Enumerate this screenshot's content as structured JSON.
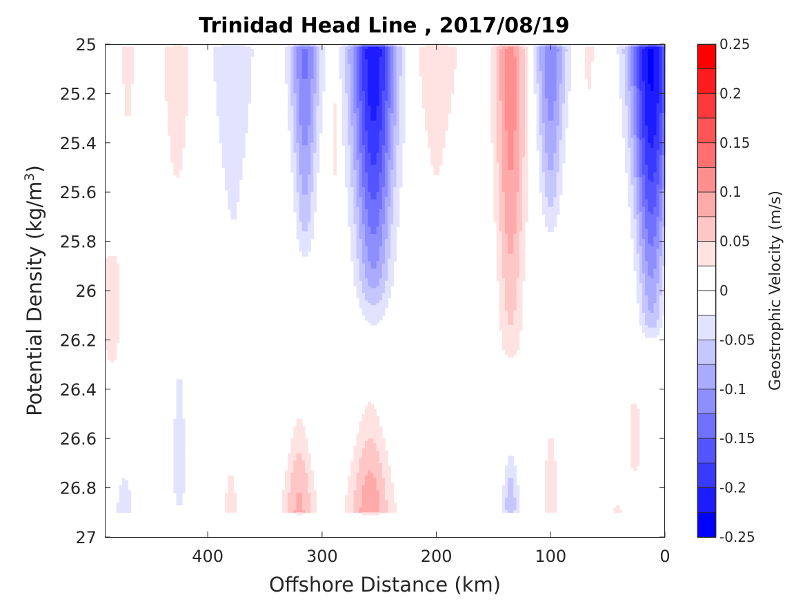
{
  "chart_data": {
    "type": "heatmap",
    "title": "Trinidad Head Line , 2017/08/19",
    "xlabel": "Offshore Distance (km)",
    "ylabel_prefix": "Potential Density (kg/m",
    "ylabel_sup": "3",
    "ylabel_suffix": ")",
    "xlim": [
      490,
      0
    ],
    "ylim": [
      25,
      27
    ],
    "x_reversed": true,
    "y_reversed": true,
    "xticks": [
      400,
      300,
      200,
      100,
      0
    ],
    "xtick_labels": [
      "400",
      "300",
      "200",
      "100",
      "0"
    ],
    "yticks": [
      25,
      25.2,
      25.4,
      25.6,
      25.8,
      26,
      26.2,
      26.4,
      26.6,
      26.8,
      27
    ],
    "ytick_labels": [
      "25",
      "25.2",
      "25.4",
      "25.6",
      "25.8",
      "26",
      "26.2",
      "26.4",
      "26.6",
      "26.8",
      "27"
    ],
    "colorbar": {
      "label": "Geostrophic Velocity (m/s)",
      "range": [
        -0.25,
        0.25
      ],
      "step": 0.025,
      "tick_values": [
        0.25,
        0.2,
        0.15,
        0.1,
        0.05,
        0,
        -0.05,
        -0.1,
        -0.15,
        -0.2,
        -0.25
      ],
      "tick_labels": [
        "0.25",
        "0.2",
        "0.15",
        "0.1",
        "0.05",
        "0",
        "-0.05",
        "-0.1",
        "-0.15",
        "-0.2",
        "-0.25"
      ],
      "levels": [
        {
          "from": 0.225,
          "to": 0.25,
          "color": "#ff0000"
        },
        {
          "from": 0.2,
          "to": 0.225,
          "color": "#ff1c1c"
        },
        {
          "from": 0.175,
          "to": 0.2,
          "color": "#ff3939"
        },
        {
          "from": 0.15,
          "to": 0.175,
          "color": "#ff5555"
        },
        {
          "from": 0.125,
          "to": 0.15,
          "color": "#ff7171"
        },
        {
          "from": 0.1,
          "to": 0.125,
          "color": "#ff8e8e"
        },
        {
          "from": 0.075,
          "to": 0.1,
          "color": "#ffaaaa"
        },
        {
          "from": 0.05,
          "to": 0.075,
          "color": "#ffc6c6"
        },
        {
          "from": 0.025,
          "to": 0.05,
          "color": "#ffe3e3"
        },
        {
          "from": 0,
          "to": 0.025,
          "color": "#ffffff"
        },
        {
          "from": -0.025,
          "to": 0,
          "color": "#ffffff"
        },
        {
          "from": -0.05,
          "to": -0.025,
          "color": "#e3e3ff"
        },
        {
          "from": -0.075,
          "to": -0.05,
          "color": "#c6c6ff"
        },
        {
          "from": -0.1,
          "to": -0.075,
          "color": "#aaaaff"
        },
        {
          "from": -0.125,
          "to": -0.1,
          "color": "#8e8eff"
        },
        {
          "from": -0.15,
          "to": -0.125,
          "color": "#7171ff"
        },
        {
          "from": -0.175,
          "to": -0.15,
          "color": "#5555ff"
        },
        {
          "from": -0.2,
          "to": -0.175,
          "color": "#3939ff"
        },
        {
          "from": -0.225,
          "to": -0.2,
          "color": "#1c1cff"
        },
        {
          "from": -0.25,
          "to": -0.225,
          "color": "#0000ff"
        }
      ]
    },
    "features": [
      {
        "sign": -1,
        "peak": 0.22,
        "peak_x": 255,
        "peak_y": 25.0,
        "hw_top": 21,
        "hw_bot": 13,
        "y_start": 25.0,
        "y_end": 26.3,
        "y_core": 25.9
      },
      {
        "sign": -1,
        "peak": 0.23,
        "peak_x": 12,
        "peak_y": 25.05,
        "hw_top": 20,
        "hw_bot": 9,
        "y_start": 25.0,
        "y_end": 26.25,
        "y_core": 26.1
      },
      {
        "sign": -1,
        "peak": 0.12,
        "peak_x": 100,
        "peak_y": 25.0,
        "hw_top": 15,
        "hw_bot": 6,
        "y_start": 25.0,
        "y_end": 25.95,
        "y_core": 25.6
      },
      {
        "sign": -1,
        "peak": 0.13,
        "peak_x": 315,
        "peak_y": 25.0,
        "hw_top": 14,
        "hw_bot": 6,
        "y_start": 25.0,
        "y_end": 26.05,
        "y_core": 25.7
      },
      {
        "sign": -1,
        "peak": 0.05,
        "peak_x": 378,
        "peak_y": 25.2,
        "hw_top": 22,
        "hw_bot": 6,
        "y_start": 25.0,
        "y_end": 25.8,
        "y_core": 25.7
      },
      {
        "sign": -1,
        "peak": 0.05,
        "peak_x": 425,
        "peak_y": 26.6,
        "hw_top": 4,
        "hw_bot": 6,
        "y_start": 26.35,
        "y_end": 26.9,
        "y_core": 26.85
      },
      {
        "sign": -1,
        "peak": 0.05,
        "peak_x": 473,
        "peak_y": 26.85,
        "hw_top": 4,
        "hw_bot": 8,
        "y_start": 26.75,
        "y_end": 26.9,
        "y_core": 26.9
      },
      {
        "sign": -1,
        "peak": 0.065,
        "peak_x": 135,
        "peak_y": 26.85,
        "hw_top": 5,
        "hw_bot": 8,
        "y_start": 26.65,
        "y_end": 26.9,
        "y_core": 26.9
      },
      {
        "sign": 1,
        "peak": 0.11,
        "peak_x": 135,
        "peak_y": 25.2,
        "hw_top": 15,
        "hw_bot": 10,
        "y_start": 25.0,
        "y_end": 26.35,
        "y_core": 26.2
      },
      {
        "sign": 1,
        "peak": 0.045,
        "peak_x": 200,
        "peak_y": 25.05,
        "hw_top": 24,
        "hw_bot": 3,
        "y_start": 25.0,
        "y_end": 25.8,
        "y_core": 25.6
      },
      {
        "sign": 1,
        "peak": 0.045,
        "peak_x": 427,
        "peak_y": 25.2,
        "hw_top": 16,
        "hw_bot": 5,
        "y_start": 25.0,
        "y_end": 25.65,
        "y_core": 25.5
      },
      {
        "sign": 1,
        "peak": 0.04,
        "peak_x": 470,
        "peak_y": 25.1,
        "hw_top": 8,
        "hw_bot": 2,
        "y_start": 25.0,
        "y_end": 25.4,
        "y_core": 25.35
      },
      {
        "sign": 1,
        "peak": 0.04,
        "peak_x": 288,
        "peak_y": 25.2,
        "hw_top": 3,
        "hw_bot": 1,
        "y_start": 25.0,
        "y_end": 26.05,
        "y_core": 26.0
      },
      {
        "sign": 1,
        "peak": 0.04,
        "peak_x": 67,
        "peak_y": 25.05,
        "hw_top": 6,
        "hw_bot": 2,
        "y_start": 25.0,
        "y_end": 25.25,
        "y_core": 25.2
      },
      {
        "sign": 1,
        "peak": 0.045,
        "peak_x": 484,
        "peak_y": 26.05,
        "hw_top": 8,
        "hw_bot": 8,
        "y_start": 25.85,
        "y_end": 26.35,
        "y_core": 26.25
      },
      {
        "sign": 1,
        "peak": 0.09,
        "peak_x": 258,
        "peak_y": 26.9,
        "hw_top": 10,
        "hw_bot": 20,
        "y_start": 26.4,
        "y_end": 26.9,
        "y_core": 26.9
      },
      {
        "sign": 1,
        "peak": 0.08,
        "peak_x": 320,
        "peak_y": 26.9,
        "hw_top": 6,
        "hw_bot": 15,
        "y_start": 26.45,
        "y_end": 26.9,
        "y_core": 26.9
      },
      {
        "sign": 1,
        "peak": 0.04,
        "peak_x": 380,
        "peak_y": 26.85,
        "hw_top": 4,
        "hw_bot": 7,
        "y_start": 26.7,
        "y_end": 26.9,
        "y_core": 26.9
      },
      {
        "sign": 1,
        "peak": 0.045,
        "peak_x": 100,
        "peak_y": 26.8,
        "hw_top": 4,
        "hw_bot": 8,
        "y_start": 26.55,
        "y_end": 26.9,
        "y_core": 26.9
      },
      {
        "sign": 1,
        "peak": 0.05,
        "peak_x": 27,
        "peak_y": 26.6,
        "hw_top": 5,
        "hw_bot": 5,
        "y_start": 26.45,
        "y_end": 26.75,
        "y_core": 26.7
      },
      {
        "sign": 1,
        "peak": 0.04,
        "peak_x": 42,
        "peak_y": 26.9,
        "hw_top": 3,
        "hw_bot": 6,
        "y_start": 26.85,
        "y_end": 26.9,
        "y_core": 26.9
      }
    ]
  }
}
